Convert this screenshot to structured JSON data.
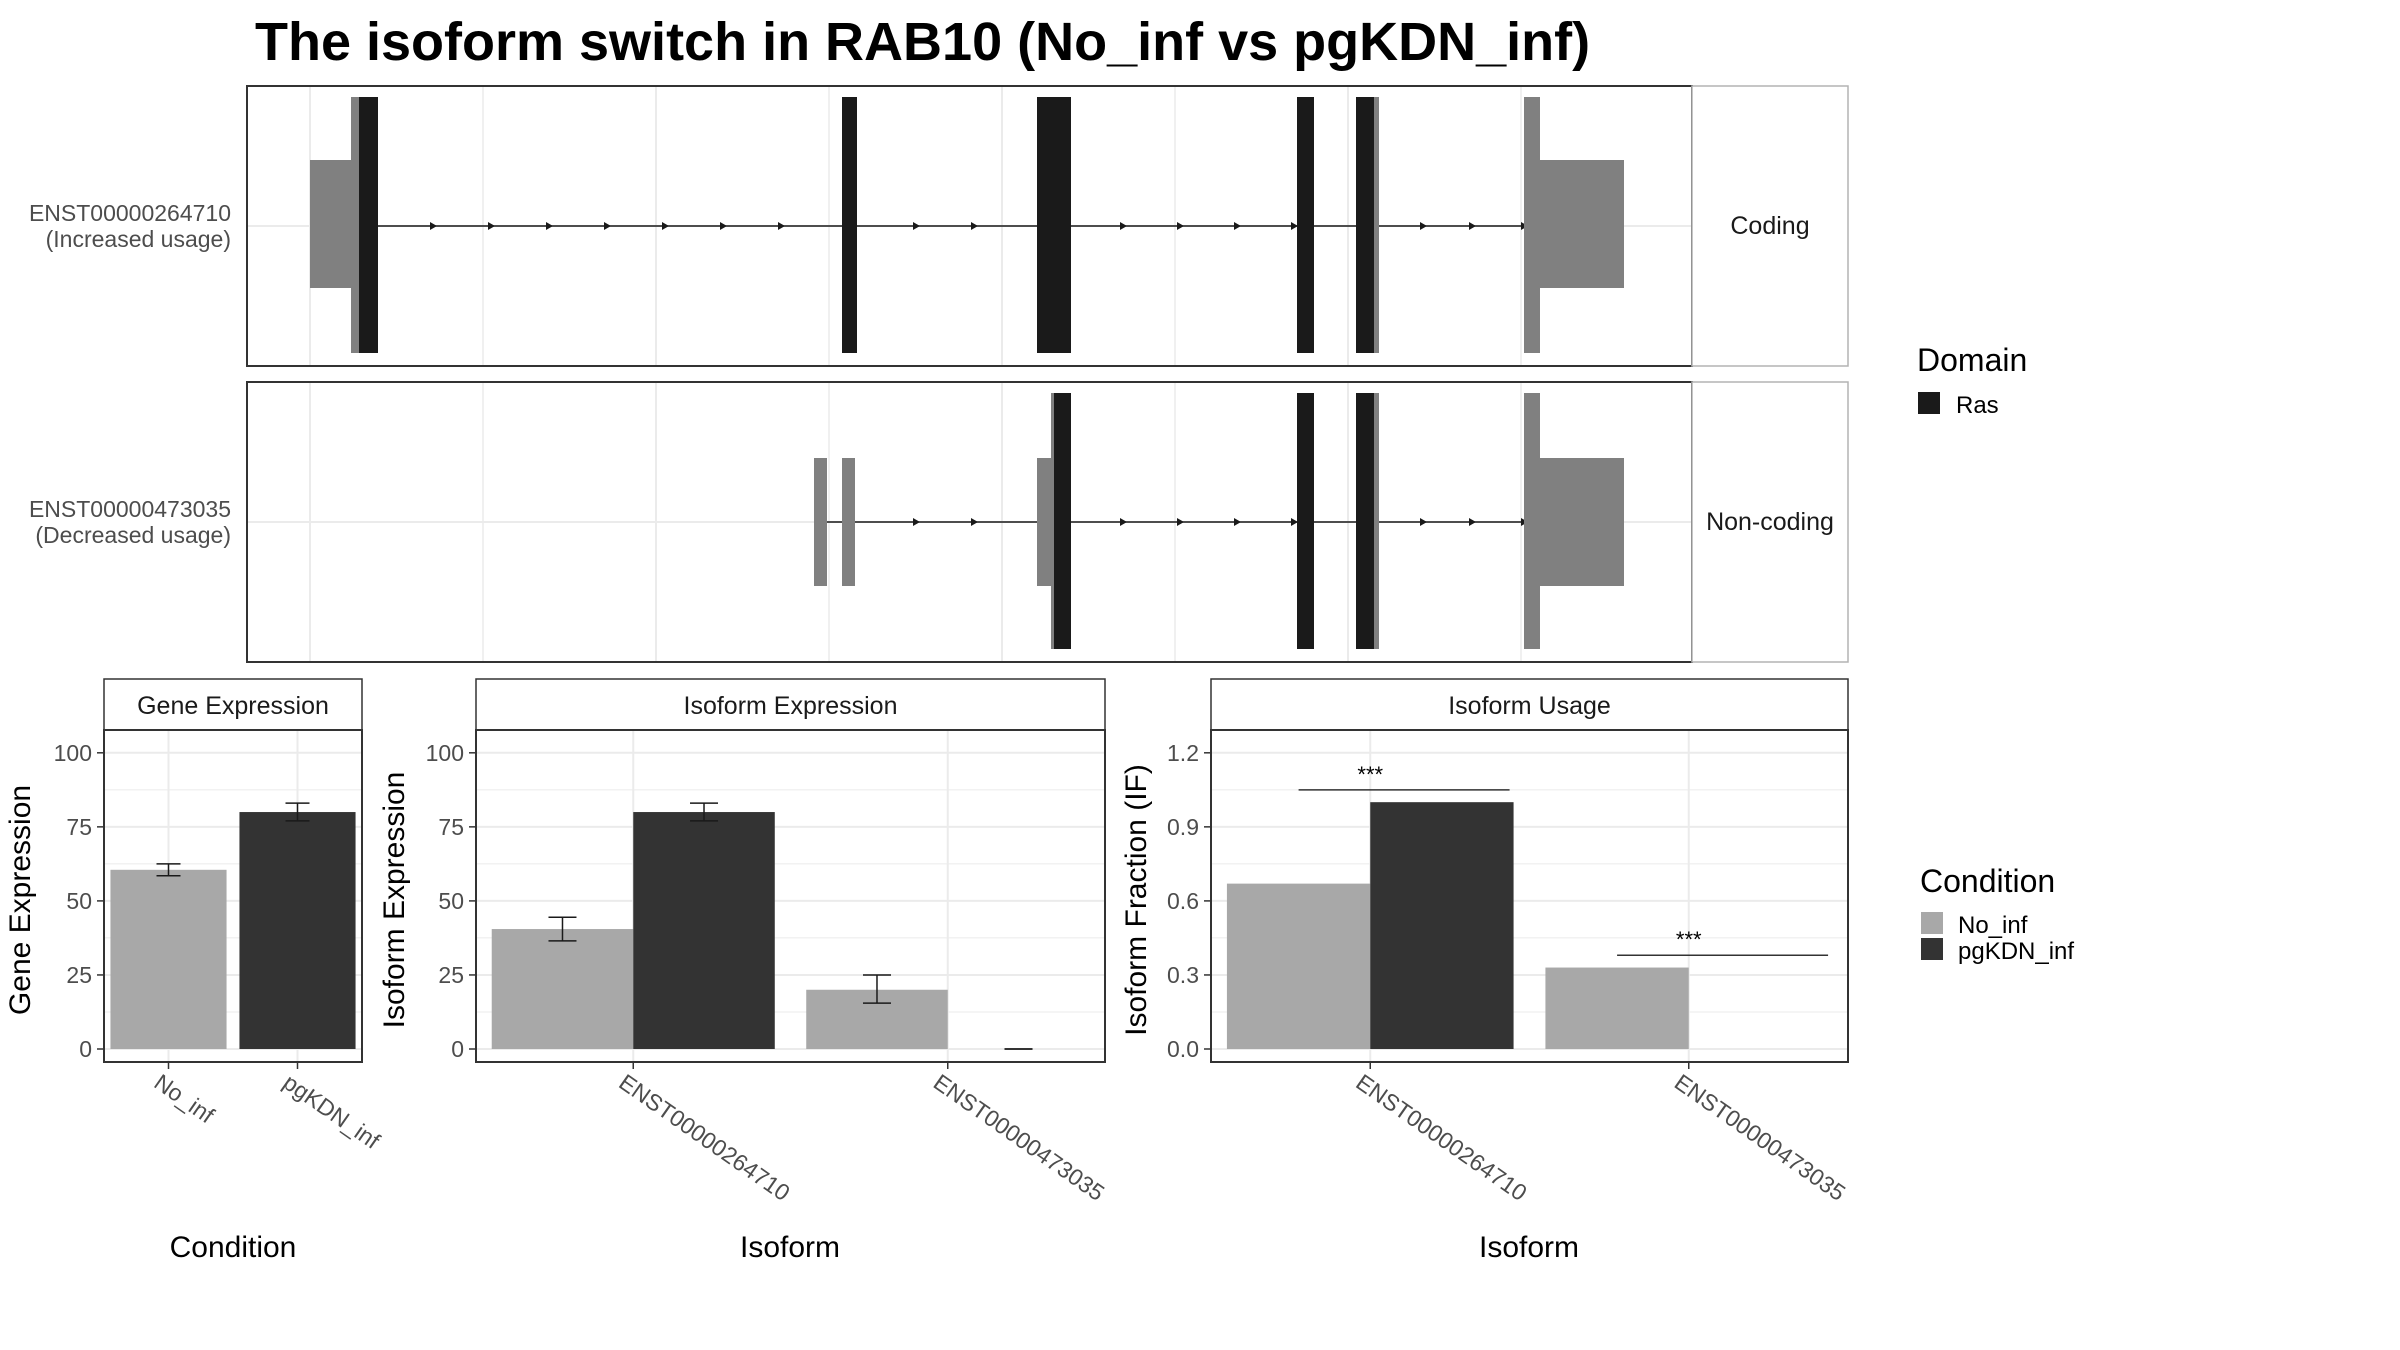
{
  "figure": {
    "title": "The isoform switch in RAB10 (No_inf vs pgKDN_inf)"
  },
  "colors": {
    "no_inf": "#a8a8a8",
    "pgkdn_inf": "#333333",
    "domain_ras": "#1a1a1a",
    "utr": "#808080",
    "grid": "#ebebeb"
  },
  "transcripts": [
    {
      "name": "ENST00000264710",
      "usage": "(Increased usage)",
      "coding": "Coding"
    },
    {
      "name": "ENST00000473035",
      "usage": "(Decreased usage)",
      "coding": "Non-coding"
    }
  ],
  "legends": {
    "domain": {
      "title": "Domain",
      "items": [
        {
          "label": "Ras",
          "color": "#1a1a1a"
        }
      ]
    },
    "condition": {
      "title": "Condition",
      "items": [
        {
          "label": "No_inf",
          "color": "#a8a8a8"
        },
        {
          "label": "pgKDN_inf",
          "color": "#333333"
        }
      ]
    }
  },
  "chart_data": [
    {
      "type": "bar",
      "strip": "Gene Expression",
      "xlabel": "Condition",
      "ylabel": "Gene Expression",
      "ylim": [
        0,
        105
      ],
      "yticks": [
        0,
        25,
        50,
        75,
        100
      ],
      "categories": [
        "No_inf",
        "pgKDN_inf"
      ],
      "values": [
        60.5,
        80
      ],
      "errors": [
        [
          58.5,
          62.5
        ],
        [
          77,
          83
        ]
      ]
    },
    {
      "type": "bar",
      "strip": "Isoform Expression",
      "xlabel": "Isoform",
      "ylabel": "Isoform Expression",
      "ylim": [
        0,
        105
      ],
      "yticks": [
        0,
        25,
        50,
        75,
        100
      ],
      "categories": [
        "ENST00000264710",
        "ENST00000473035"
      ],
      "series": [
        {
          "name": "No_inf",
          "values": [
            40.5,
            20
          ],
          "errors": [
            [
              36.5,
              44.5
            ],
            [
              15.5,
              25
            ]
          ]
        },
        {
          "name": "pgKDN_inf",
          "values": [
            80,
            0
          ],
          "errors": [
            [
              77,
              83
            ],
            [
              0,
              0
            ]
          ]
        }
      ]
    },
    {
      "type": "bar",
      "strip": "Isoform Usage",
      "xlabel": "Isoform",
      "ylabel": "Isoform Fraction (IF)",
      "ylim": [
        0,
        1.26
      ],
      "yticks": [
        "0.0",
        "0.3",
        "0.6",
        "0.9",
        "1.2"
      ],
      "categories": [
        "ENST00000264710",
        "ENST00000473035"
      ],
      "series": [
        {
          "name": "No_inf",
          "values": [
            0.67,
            0.33
          ]
        },
        {
          "name": "pgKDN_inf",
          "values": [
            1.0,
            0.0
          ]
        }
      ],
      "significance": [
        {
          "category": "ENST00000264710",
          "label": "***",
          "y": 1.05
        },
        {
          "category": "ENST00000473035",
          "label": "***",
          "y": 0.38
        }
      ]
    }
  ]
}
